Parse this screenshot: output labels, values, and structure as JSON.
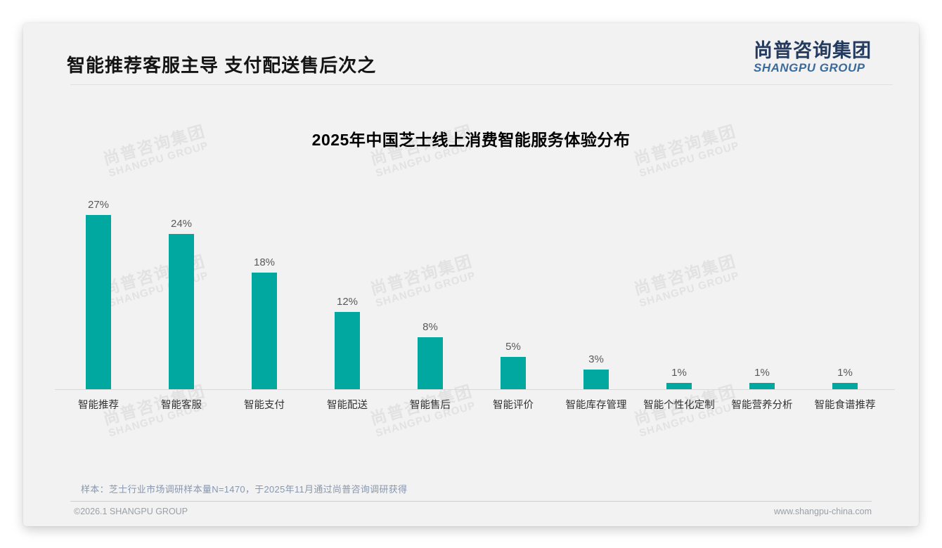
{
  "slide": {
    "title": "智能推荐客服主导 支付配送售后次之",
    "logo": {
      "cn": "尚普咨询集团",
      "en": "SHANGPU GROUP"
    },
    "watermark": {
      "cn": "尚普咨询集团",
      "en": "SHANGPU GROUP"
    },
    "note": "样本：芝士行业市场调研样本量N=1470，于2025年11月通过尚普咨询调研获得",
    "footer": {
      "left": "©2026.1 SHANGPU GROUP",
      "right": "www.shangpu-china.com"
    }
  },
  "chart_data": {
    "type": "bar",
    "title": "2025年中国芝士线上消费智能服务体验分布",
    "categories": [
      "智能推荐",
      "智能客服",
      "智能支付",
      "智能配送",
      "智能售后",
      "智能评价",
      "智能库存管理",
      "智能个性化定制",
      "智能营养分析",
      "智能食谱推荐"
    ],
    "values": [
      27,
      24,
      18,
      12,
      8,
      5,
      3,
      1,
      1,
      1
    ],
    "data_labels": [
      "27%",
      "24%",
      "18%",
      "12%",
      "8%",
      "5%",
      "3%",
      "1%",
      "1%",
      "1%"
    ],
    "unit": "%",
    "bar_color": "#00A8A0",
    "xlabel": "",
    "ylabel": "",
    "ylim": [
      0,
      30
    ],
    "grid": false,
    "legend": false,
    "value_label_color": "#595959",
    "category_label_color": "#333333"
  }
}
